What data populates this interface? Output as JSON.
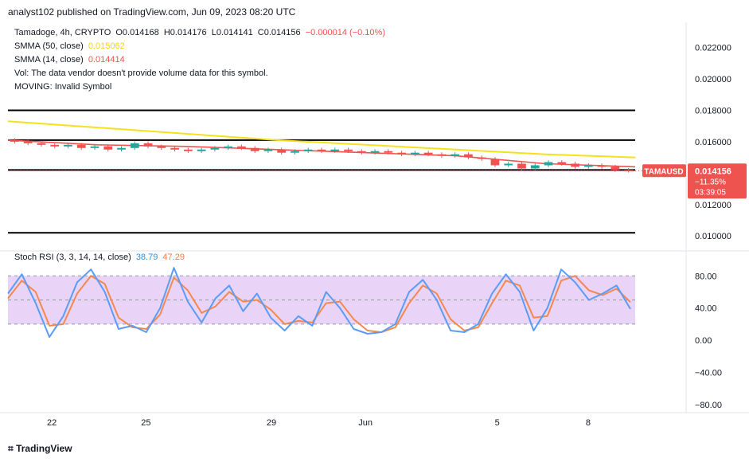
{
  "header": {
    "published": "analyst102 published on TradingView.com, Jun 09, 2023 08:20 UTC"
  },
  "legend": {
    "symbol": "Tamadoge, 4h, CRYPTO",
    "open": "O0.014168",
    "high": "H0.014176",
    "low": "L0.014141",
    "close": "C0.014156",
    "change": "−0.000014 (−0.10%)",
    "sma50_label": "SMMA (50, close)",
    "sma50_value": "0.015062",
    "sma14_label": "SMMA (14, close)",
    "sma14_value": "0.014414",
    "vol_text": "Vol: The data vendor doesn't provide volume data for this symbol.",
    "moving_text": "MOVING: Invalid Symbol",
    "rsi_label": "Stoch RSI (3, 3, 14, 14, close)",
    "rsi_k": "38.79",
    "rsi_d": "47.29"
  },
  "price_tag": {
    "symbol": "TAMAUSD",
    "price": "0.014156",
    "pct": "−11.35%",
    "countdown": "03:39:05"
  },
  "watermark": "TradingView",
  "colors": {
    "up": "#26a69a",
    "down": "#ef5350",
    "sma50": "#f5e11b",
    "sma14": "#ef5350",
    "stoch_k": "#5b9cf6",
    "stoch_d": "#f5894d",
    "rsi_band": "#e1c6f5"
  },
  "chart_data": [
    {
      "type": "candlestick",
      "title": "Tamadoge, 4h, CRYPTO",
      "y_ticks": [
        "0.022000",
        "0.020000",
        "0.018000",
        "0.016000",
        "0.012000",
        "0.010000"
      ],
      "x_ticks": [
        "22",
        "25",
        "29",
        "Jun",
        "5",
        "8"
      ],
      "ylim": [
        0.0092,
        0.0236
      ],
      "horizontal_levels": [
        0.018,
        0.0161,
        0.0142,
        0.0102
      ],
      "sma50": {
        "name": "SMMA (50, close)",
        "x": [
          "May 20",
          "May 22",
          "May 25",
          "May 29",
          "Jun 1",
          "Jun 5",
          "Jun 8",
          "Jun 9"
        ],
        "values": [
          0.0173,
          0.0169,
          0.0165,
          0.0161,
          0.0158,
          0.0155,
          0.0152,
          0.015
        ]
      },
      "sma14": {
        "name": "SMMA (14, close)",
        "x": [
          "May 20",
          "May 22",
          "May 25",
          "May 29",
          "Jun 1",
          "Jun 5",
          "Jun 8",
          "Jun 9"
        ],
        "values": [
          0.0161,
          0.0158,
          0.0157,
          0.0155,
          0.0153,
          0.0151,
          0.0146,
          0.0144
        ]
      },
      "close_prices": [
        0.016,
        0.0159,
        0.0158,
        0.0157,
        0.0158,
        0.0156,
        0.0157,
        0.0155,
        0.0156,
        0.0159,
        0.0157,
        0.0156,
        0.0155,
        0.0154,
        0.0155,
        0.0156,
        0.0157,
        0.0156,
        0.0154,
        0.0155,
        0.0153,
        0.0154,
        0.0155,
        0.0154,
        0.0155,
        0.0154,
        0.0153,
        0.0154,
        0.0153,
        0.0152,
        0.0153,
        0.0152,
        0.0151,
        0.0152,
        0.015,
        0.0149,
        0.0145,
        0.0146,
        0.0143,
        0.0145,
        0.0147,
        0.0146,
        0.0144,
        0.0145,
        0.0144,
        0.0142,
        0.01416
      ],
      "last_price": 0.014156
    },
    {
      "type": "line",
      "title": "Stoch RSI (3, 3, 14, 14, close)",
      "y_ticks": [
        "80.00",
        "40.00",
        "0.00",
        "−40.00",
        "−80.00"
      ],
      "ylim": [
        -88,
        108
      ],
      "bands": [
        80,
        50,
        20
      ],
      "series": [
        {
          "name": "K",
          "values": [
            58,
            82,
            46,
            4,
            30,
            72,
            88,
            60,
            14,
            18,
            10,
            40,
            90,
            48,
            22,
            52,
            68,
            36,
            58,
            28,
            12,
            30,
            18,
            60,
            40,
            14,
            8,
            10,
            20,
            60,
            75,
            50,
            12,
            10,
            20,
            58,
            82,
            60,
            12,
            40,
            88,
            72,
            50,
            58,
            68,
            38.79
          ]
        },
        {
          "name": "D",
          "values": [
            52,
            74,
            60,
            18,
            20,
            58,
            80,
            70,
            28,
            16,
            14,
            32,
            78,
            62,
            34,
            42,
            60,
            48,
            50,
            38,
            20,
            24,
            22,
            46,
            48,
            26,
            12,
            10,
            16,
            46,
            68,
            58,
            26,
            12,
            16,
            46,
            74,
            68,
            28,
            30,
            74,
            80,
            62,
            56,
            64,
            47.29
          ]
        }
      ]
    }
  ]
}
